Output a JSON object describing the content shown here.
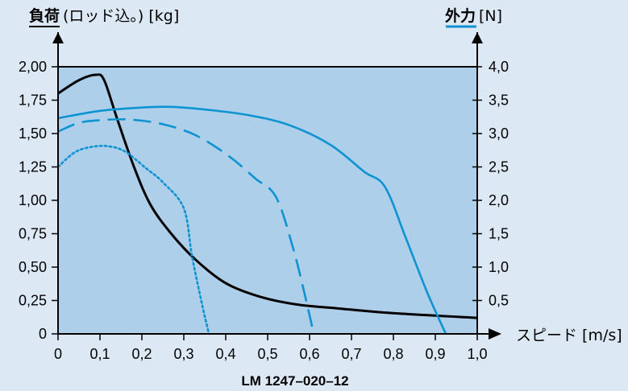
{
  "chart_data": {
    "type": "line",
    "title": "",
    "left_axis": {
      "label_bold": "負荷",
      "label_rest": "(ロッド込。) [kg]",
      "ylim": [
        0,
        2.0
      ],
      "ticks": [
        "0",
        "0,25",
        "0,50",
        "0,75",
        "1,00",
        "1,25",
        "1,50",
        "1,75",
        "2,00"
      ]
    },
    "right_axis": {
      "label_bold": "外力",
      "label_rest": "[N]",
      "ylim": [
        0,
        4.0
      ],
      "ticks": [
        "0,5",
        "1,0",
        "1,5",
        "2,0",
        "2,5",
        "3,0",
        "3,5",
        "4,0"
      ]
    },
    "x_axis": {
      "label": "スピード [m/s]",
      "xlim": [
        0,
        1.0
      ],
      "ticks": [
        "0",
        "0,1",
        "0,2",
        "0,3",
        "0,4",
        "0,5",
        "0,6",
        "0,7",
        "0,8",
        "0,9",
        "1,0"
      ]
    },
    "footer_code": "LM 1247–020–12",
    "series": [
      {
        "axis": "left",
        "style": "solid",
        "color": "#000000",
        "x": [
          0,
          0.05,
          0.09,
          0.11,
          0.14,
          0.18,
          0.22,
          0.27,
          0.33,
          0.4,
          0.48,
          0.57,
          0.67,
          0.8,
          1.0
        ],
        "y": [
          1.8,
          1.9,
          1.94,
          1.9,
          1.62,
          1.26,
          0.97,
          0.75,
          0.55,
          0.38,
          0.28,
          0.22,
          0.19,
          0.155,
          0.12
        ]
      },
      {
        "axis": "right",
        "style": "solid",
        "color": "#0d93d2",
        "x": [
          0,
          0.1,
          0.2,
          0.27,
          0.35,
          0.45,
          0.55,
          0.65,
          0.73,
          0.78,
          0.83,
          0.88,
          0.925
        ],
        "y": [
          3.23,
          3.34,
          3.39,
          3.4,
          3.36,
          3.28,
          3.13,
          2.83,
          2.43,
          2.2,
          1.43,
          0.63,
          0.0
        ]
      },
      {
        "axis": "right",
        "style": "dashed",
        "color": "#0d93d2",
        "x": [
          0,
          0.05,
          0.1,
          0.17,
          0.25,
          0.33,
          0.41,
          0.47,
          0.52,
          0.56,
          0.59,
          0.61
        ],
        "y": [
          3.03,
          3.16,
          3.2,
          3.21,
          3.14,
          2.97,
          2.65,
          2.33,
          2.05,
          1.3,
          0.55,
          0.0
        ]
      },
      {
        "axis": "right",
        "style": "dotted",
        "color": "#0d93d2",
        "x": [
          0,
          0.04,
          0.08,
          0.12,
          0.16,
          0.21,
          0.25,
          0.3,
          0.32,
          0.345,
          0.36
        ],
        "y": [
          2.5,
          2.72,
          2.8,
          2.81,
          2.73,
          2.48,
          2.27,
          1.88,
          1.15,
          0.4,
          0.0
        ]
      }
    ]
  }
}
